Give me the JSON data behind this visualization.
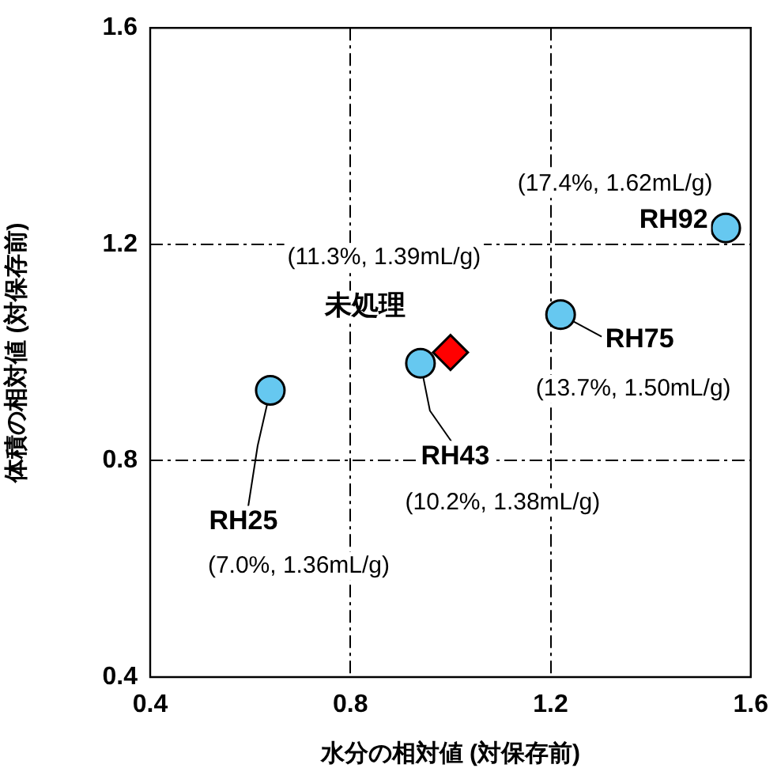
{
  "chart_data": {
    "type": "scatter",
    "xlabel": "水分の相対値 (対保存前)",
    "ylabel": "体積の相対値 (対保存前)",
    "xlim": [
      0.4,
      1.6
    ],
    "xticks": [
      0.4,
      0.8,
      1.2,
      1.6
    ],
    "ylim": [
      0.4,
      1.6
    ],
    "yticks": [
      0.4,
      0.8,
      1.2,
      1.6
    ],
    "grid": true,
    "legend": false,
    "series": [
      {
        "color": "#66c8f0",
        "marker": "circle",
        "x": [
          0.64,
          0.94,
          1.22,
          1.55
        ],
        "values": [
          0.93,
          0.98,
          1.07,
          1.23
        ]
      },
      {
        "color": "#ff0000",
        "marker": "diamond",
        "x": [
          1.0
        ],
        "values": [
          1.0
        ]
      }
    ],
    "annotations": [
      {
        "text": "RH25",
        "x": 0.64,
        "y": 0.93
      },
      "(7.0%, 1.36mL/g)",
      {
        "text": "RH43",
        "x": 0.94,
        "y": 0.98
      },
      "(10.2%, 1.38mL/g)",
      {
        "text": "未処理",
        "x": 1.0,
        "y": 1.0
      },
      "(11.3%, 1.39mL/g)",
      {
        "text": "RH75",
        "x": 1.22,
        "y": 1.07
      },
      "(13.7%, 1.50mL/g)",
      {
        "text": "RH92",
        "x": 1.55,
        "y": 1.23
      },
      "(17.4%, 1.62mL/g)"
    ]
  }
}
